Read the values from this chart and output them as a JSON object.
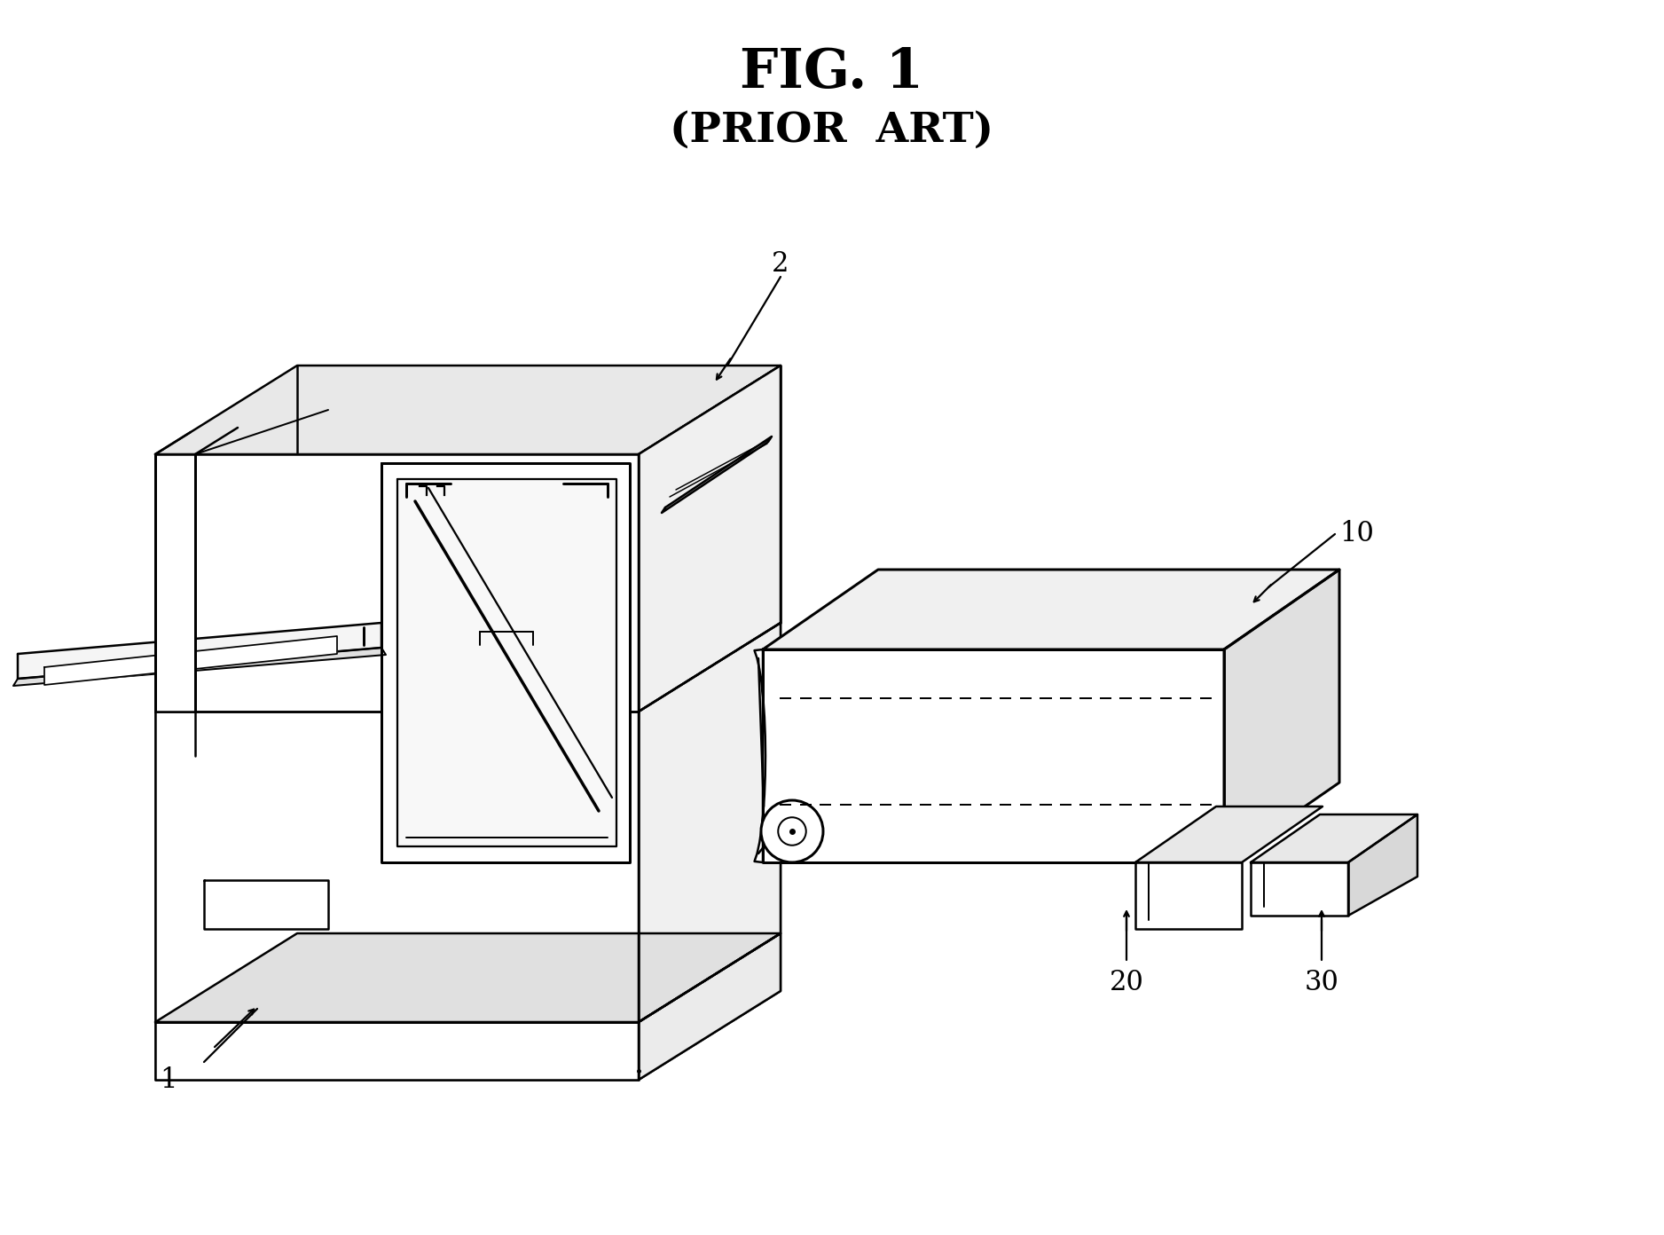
{
  "title_line1": "FIG. 1",
  "title_line2": "(PRIOR  ART)",
  "bg_color": "#ffffff",
  "line_color": "#000000",
  "lw": 1.8,
  "label_fontsize": 20,
  "title_fontsize": 44,
  "subtitle_fontsize": 34
}
